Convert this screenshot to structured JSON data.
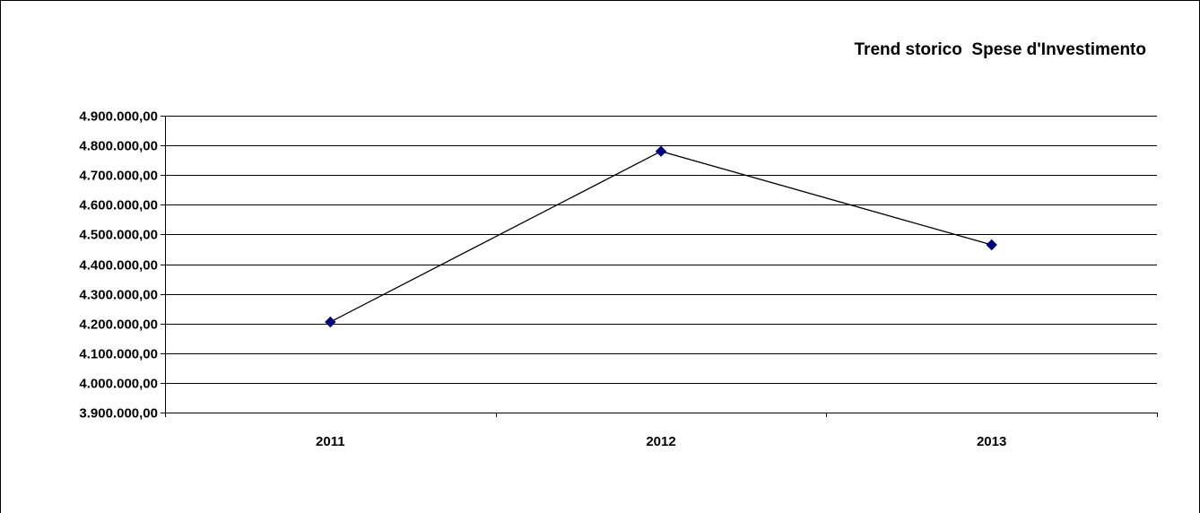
{
  "chart_data": {
    "type": "line",
    "title": "Trend storico  Spese d'Investimento",
    "categories": [
      "2011",
      "2012",
      "2013"
    ],
    "series": [
      {
        "values": [
          4205000,
          4780000,
          4465000
        ],
        "color": "#000000",
        "marker_color": "#000080",
        "marker": "diamond"
      }
    ],
    "ylim": [
      3900000,
      4900000
    ],
    "ytick_step": 100000,
    "ytick_labels": [
      "3.900.000,00",
      "4.000.000,00",
      "4.100.000,00",
      "4.200.000,00",
      "4.300.000,00",
      "4.400.000,00",
      "4.500.000,00",
      "4.600.000,00",
      "4.700.000,00",
      "4.800.000,00",
      "4.900.000,00"
    ],
    "grid": true,
    "legend": "none"
  }
}
